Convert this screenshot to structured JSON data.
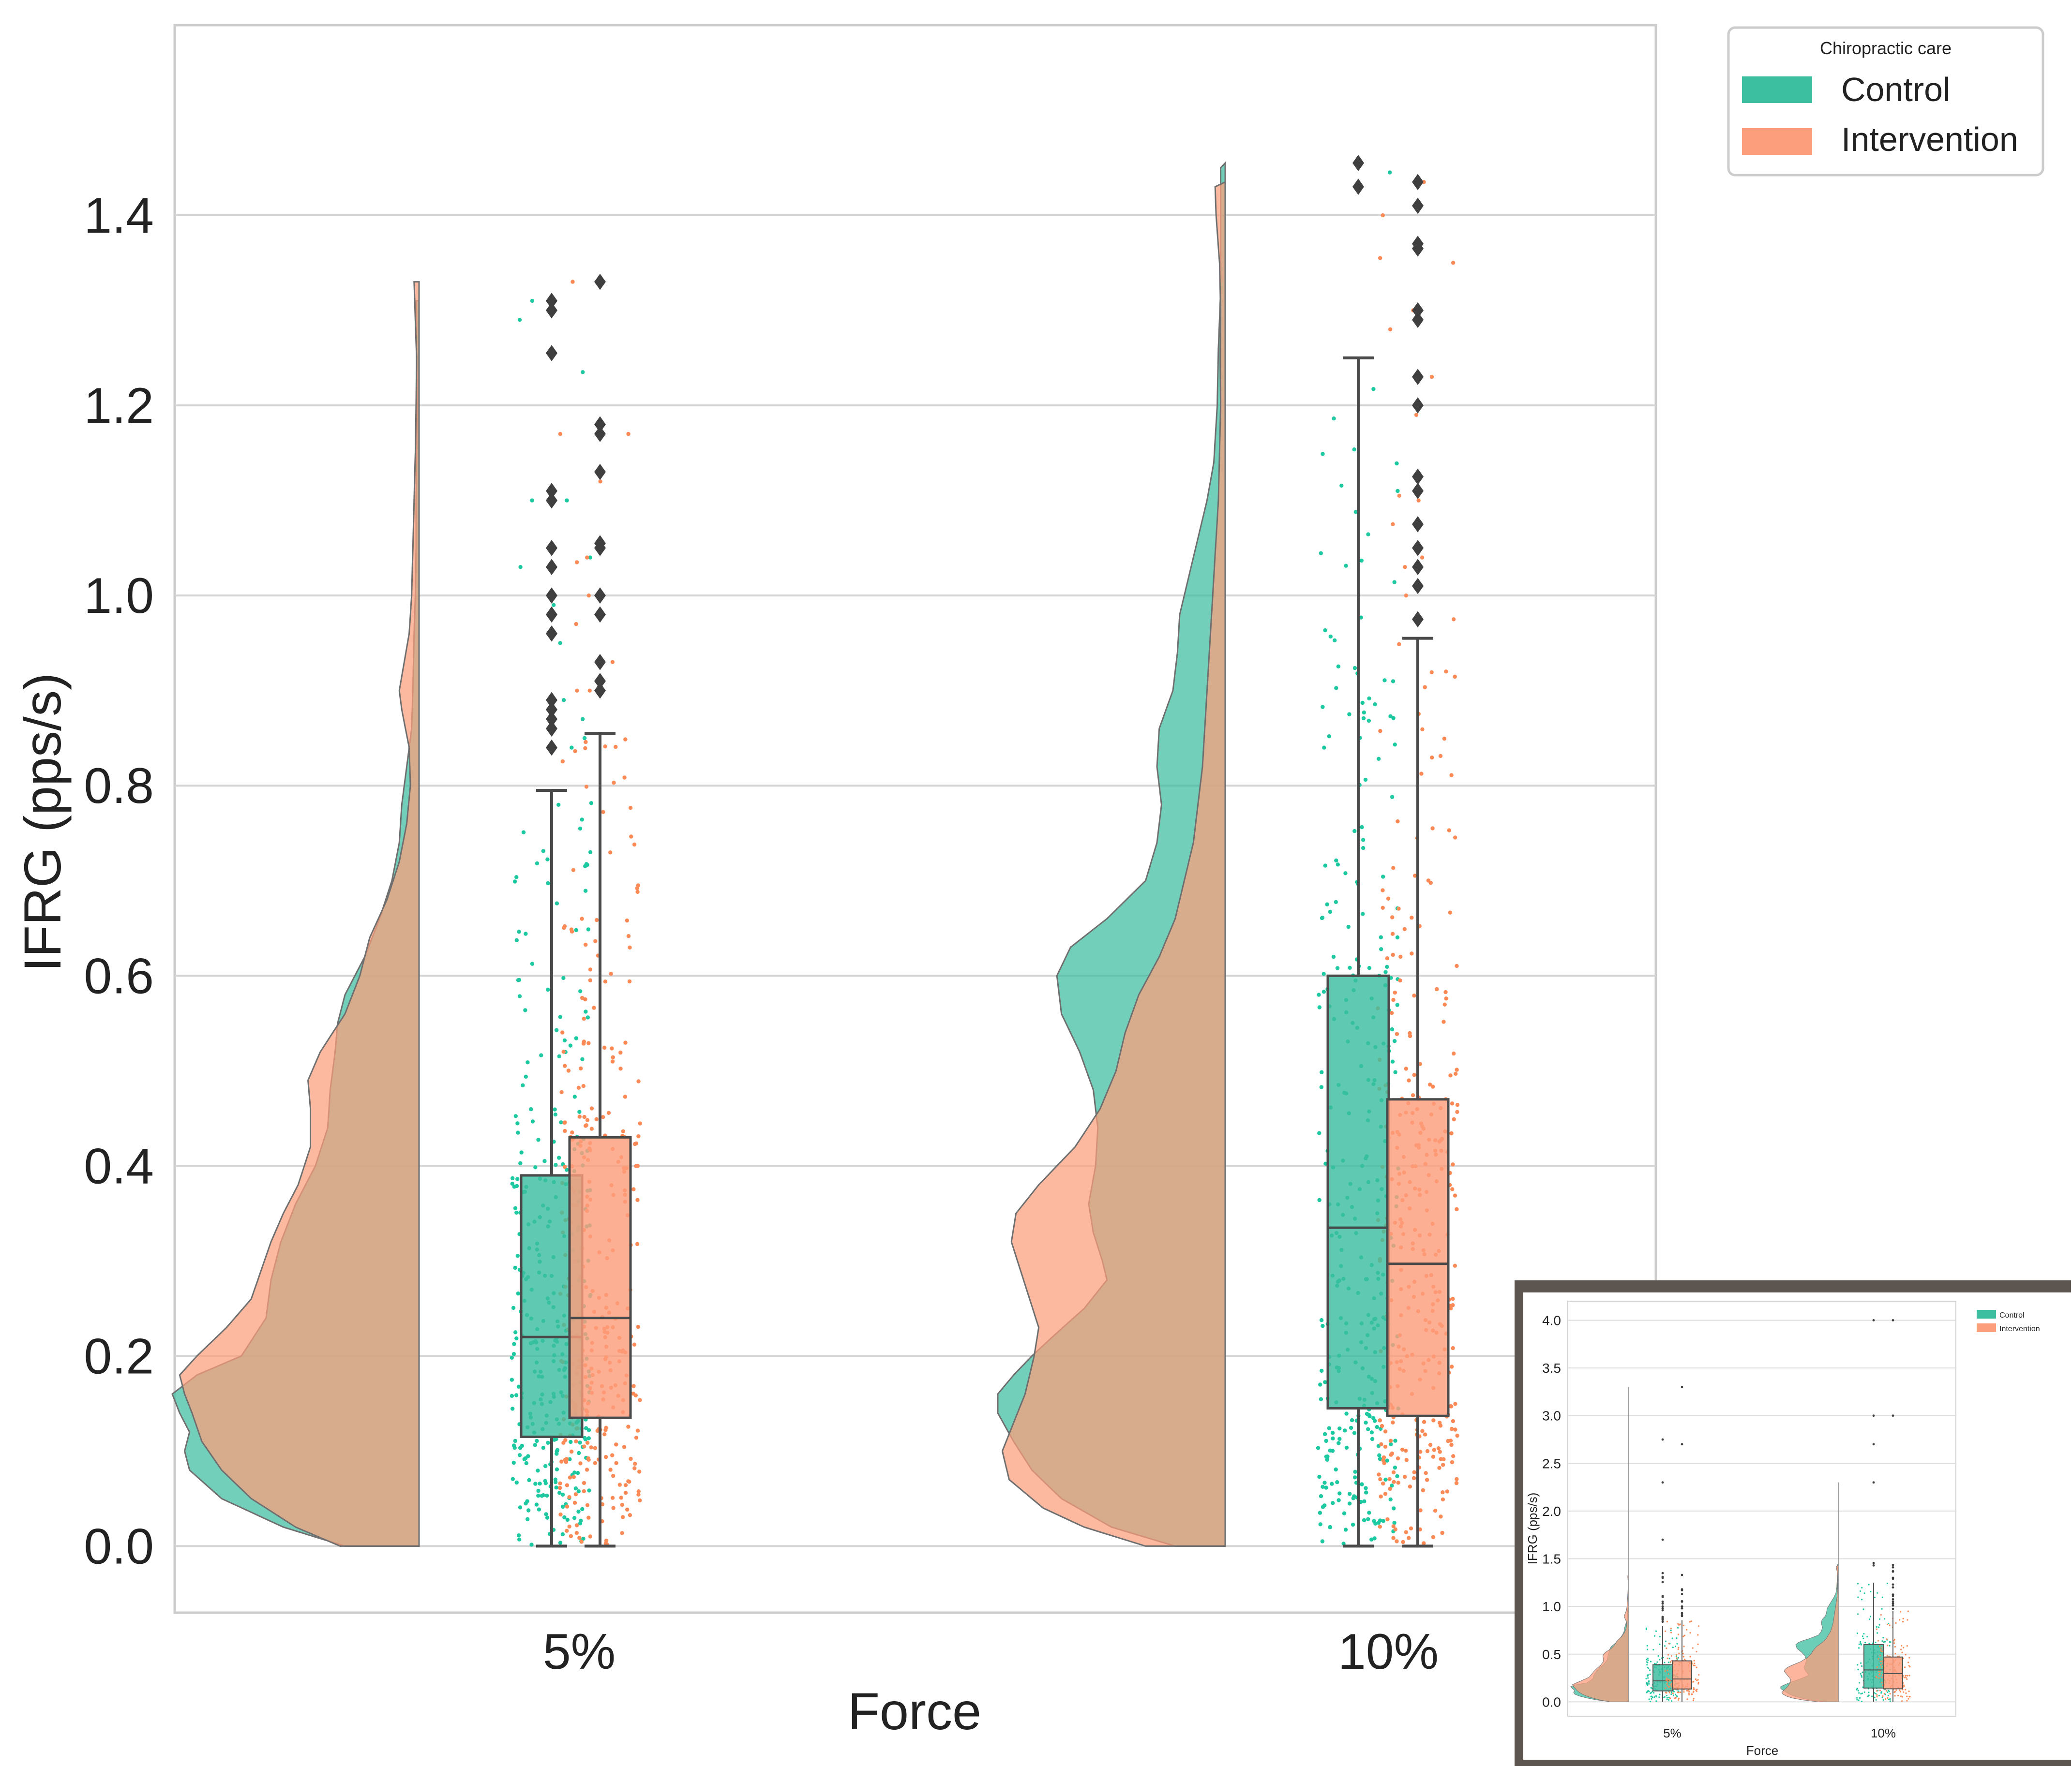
{
  "chart_data": {
    "type": "raincloud",
    "title": "",
    "xlabel": "Force",
    "ylabel": "IFRG (pps/s)",
    "categories": [
      "5%",
      "10%"
    ],
    "ylim": [
      -0.07,
      1.6
    ],
    "yticks": [
      0.0,
      0.2,
      0.4,
      0.6,
      0.8,
      1.0,
      1.2,
      1.4
    ],
    "ytick_labels": [
      "0.0",
      "0.2",
      "0.4",
      "0.6",
      "0.8",
      "1.0",
      "1.2",
      "1.4"
    ],
    "grid": true,
    "legend": {
      "title": "Chiropractic care",
      "placement": "outside-top-right",
      "entries": [
        {
          "name": "Control",
          "color": "#3cbea0"
        },
        {
          "name": "Intervention",
          "color": "#fc9e7c"
        }
      ]
    },
    "colors": {
      "control": "#3cbea0",
      "intervention": "#fc9e7c",
      "control_point": "#1dc9a0",
      "intervention_point": "#fb8a56",
      "box_line": "#4a4a4a",
      "grid": "#d4d4d4"
    },
    "series": [
      {
        "name": "Control",
        "boxes": [
          {
            "category": "5%",
            "whisker_low": 0.0,
            "q1": 0.115,
            "median": 0.22,
            "q3": 0.39,
            "whisker_high": 0.795,
            "outliers": [
              0.84,
              0.86,
              0.87,
              0.88,
              0.89,
              0.96,
              0.98,
              1.0,
              1.03,
              1.05,
              1.1,
              1.11,
              1.255,
              1.3,
              1.31
            ]
          },
          {
            "category": "10%",
            "whisker_low": 0.0,
            "q1": 0.145,
            "median": 0.335,
            "q3": 0.6,
            "whisker_high": 1.25,
            "outliers": [
              1.43,
              1.455
            ]
          }
        ],
        "density": [
          {
            "category": "5%",
            "ymax": 1.31,
            "profile": [
              [
                0.0,
                0.3
              ],
              [
                0.02,
                0.55
              ],
              [
                0.05,
                0.8
              ],
              [
                0.08,
                0.93
              ],
              [
                0.1,
                0.95
              ],
              [
                0.12,
                0.93
              ],
              [
                0.14,
                0.97
              ],
              [
                0.16,
                1.0
              ],
              [
                0.18,
                0.9
              ],
              [
                0.2,
                0.72
              ],
              [
                0.24,
                0.62
              ],
              [
                0.28,
                0.6
              ],
              [
                0.32,
                0.56
              ],
              [
                0.36,
                0.5
              ],
              [
                0.4,
                0.42
              ],
              [
                0.44,
                0.37
              ],
              [
                0.48,
                0.36
              ],
              [
                0.52,
                0.34
              ],
              [
                0.55,
                0.33
              ],
              [
                0.58,
                0.3
              ],
              [
                0.62,
                0.22
              ],
              [
                0.66,
                0.16
              ],
              [
                0.7,
                0.11
              ],
              [
                0.74,
                0.08
              ],
              [
                0.78,
                0.07
              ],
              [
                0.82,
                0.05
              ],
              [
                0.86,
                0.03
              ],
              [
                0.9,
                0.025
              ],
              [
                0.96,
                0.02
              ],
              [
                1.0,
                0.015
              ],
              [
                1.05,
                0.012
              ],
              [
                1.1,
                0.012
              ],
              [
                1.15,
                0.01
              ],
              [
                1.2,
                0.008
              ],
              [
                1.25,
                0.01
              ],
              [
                1.31,
                0.012
              ]
            ]
          },
          {
            "category": "10%",
            "ymax": 1.455,
            "profile": [
              [
                0.0,
                0.22
              ],
              [
                0.02,
                0.5
              ],
              [
                0.05,
                0.72
              ],
              [
                0.08,
                0.85
              ],
              [
                0.11,
                0.93
              ],
              [
                0.14,
                1.0
              ],
              [
                0.16,
                1.0
              ],
              [
                0.18,
                0.93
              ],
              [
                0.2,
                0.85
              ],
              [
                0.22,
                0.76
              ],
              [
                0.25,
                0.62
              ],
              [
                0.28,
                0.52
              ],
              [
                0.3,
                0.54
              ],
              [
                0.33,
                0.58
              ],
              [
                0.36,
                0.6
              ],
              [
                0.4,
                0.57
              ],
              [
                0.44,
                0.56
              ],
              [
                0.48,
                0.58
              ],
              [
                0.52,
                0.64
              ],
              [
                0.56,
                0.72
              ],
              [
                0.6,
                0.74
              ],
              [
                0.63,
                0.68
              ],
              [
                0.66,
                0.52
              ],
              [
                0.7,
                0.35
              ],
              [
                0.74,
                0.3
              ],
              [
                0.78,
                0.28
              ],
              [
                0.82,
                0.3
              ],
              [
                0.86,
                0.29
              ],
              [
                0.9,
                0.23
              ],
              [
                0.94,
                0.21
              ],
              [
                0.98,
                0.2
              ],
              [
                1.02,
                0.16
              ],
              [
                1.06,
                0.12
              ],
              [
                1.1,
                0.08
              ],
              [
                1.14,
                0.05
              ],
              [
                1.2,
                0.035
              ],
              [
                1.26,
                0.03
              ],
              [
                1.32,
                0.02
              ],
              [
                1.38,
                0.02
              ],
              [
                1.44,
                0.02
              ],
              [
                1.455,
                0.02
              ]
            ]
          }
        ]
      },
      {
        "name": "Intervention",
        "boxes": [
          {
            "category": "5%",
            "whisker_low": 0.0,
            "q1": 0.135,
            "median": 0.24,
            "q3": 0.43,
            "whisker_high": 0.855,
            "outliers": [
              0.9,
              0.91,
              0.93,
              0.98,
              1.0,
              1.05,
              1.055,
              1.13,
              1.17,
              1.18,
              1.33
            ]
          },
          {
            "category": "10%",
            "whisker_low": 0.0,
            "q1": 0.137,
            "median": 0.297,
            "q3": 0.47,
            "whisker_high": 0.955,
            "outliers": [
              0.975,
              1.01,
              1.03,
              1.05,
              1.075,
              1.11,
              1.125,
              1.2,
              1.23,
              1.29,
              1.3,
              1.365,
              1.37,
              1.41,
              1.435
            ]
          }
        ],
        "density": [
          {
            "category": "5%",
            "ymax": 1.33,
            "profile": [
              [
                0.0,
                0.32
              ],
              [
                0.02,
                0.5
              ],
              [
                0.05,
                0.68
              ],
              [
                0.08,
                0.8
              ],
              [
                0.11,
                0.88
              ],
              [
                0.14,
                0.92
              ],
              [
                0.16,
                0.95
              ],
              [
                0.18,
                0.97
              ],
              [
                0.2,
                0.9
              ],
              [
                0.23,
                0.78
              ],
              [
                0.26,
                0.68
              ],
              [
                0.29,
                0.64
              ],
              [
                0.32,
                0.6
              ],
              [
                0.35,
                0.55
              ],
              [
                0.38,
                0.49
              ],
              [
                0.42,
                0.44
              ],
              [
                0.46,
                0.44
              ],
              [
                0.49,
                0.45
              ],
              [
                0.52,
                0.4
              ],
              [
                0.56,
                0.3
              ],
              [
                0.6,
                0.24
              ],
              [
                0.64,
                0.2
              ],
              [
                0.68,
                0.13
              ],
              [
                0.72,
                0.08
              ],
              [
                0.76,
                0.05
              ],
              [
                0.8,
                0.035
              ],
              [
                0.84,
                0.04
              ],
              [
                0.88,
                0.07
              ],
              [
                0.9,
                0.08
              ],
              [
                0.93,
                0.06
              ],
              [
                0.96,
                0.04
              ],
              [
                1.0,
                0.03
              ],
              [
                1.05,
                0.025
              ],
              [
                1.1,
                0.02
              ],
              [
                1.15,
                0.015
              ],
              [
                1.2,
                0.012
              ],
              [
                1.25,
                0.01
              ],
              [
                1.33,
                0.02
              ]
            ]
          },
          {
            "category": "10%",
            "ymax": 1.435,
            "profile": [
              [
                0.0,
                0.35
              ],
              [
                0.02,
                0.62
              ],
              [
                0.04,
                0.8
              ],
              [
                0.07,
                0.95
              ],
              [
                0.1,
                0.98
              ],
              [
                0.13,
                0.93
              ],
              [
                0.16,
                0.88
              ],
              [
                0.2,
                0.84
              ],
              [
                0.23,
                0.82
              ],
              [
                0.26,
                0.86
              ],
              [
                0.29,
                0.9
              ],
              [
                0.32,
                0.94
              ],
              [
                0.35,
                0.92
              ],
              [
                0.38,
                0.82
              ],
              [
                0.42,
                0.66
              ],
              [
                0.46,
                0.55
              ],
              [
                0.5,
                0.48
              ],
              [
                0.54,
                0.44
              ],
              [
                0.58,
                0.38
              ],
              [
                0.62,
                0.29
              ],
              [
                0.66,
                0.22
              ],
              [
                0.7,
                0.18
              ],
              [
                0.74,
                0.14
              ],
              [
                0.78,
                0.12
              ],
              [
                0.82,
                0.1
              ],
              [
                0.86,
                0.09
              ],
              [
                0.9,
                0.08
              ],
              [
                0.94,
                0.07
              ],
              [
                0.98,
                0.06
              ],
              [
                1.02,
                0.05
              ],
              [
                1.06,
                0.04
              ],
              [
                1.1,
                0.03
              ],
              [
                1.15,
                0.025
              ],
              [
                1.2,
                0.02
              ],
              [
                1.25,
                0.022
              ],
              [
                1.3,
                0.02
              ],
              [
                1.35,
                0.025
              ],
              [
                1.4,
                0.04
              ],
              [
                1.435,
                0.045
              ]
            ]
          }
        ]
      }
    ],
    "inset": {
      "ylim": [
        -0.15,
        4.2
      ],
      "yticks": [
        0.0,
        0.5,
        1.0,
        1.5,
        2.0,
        2.5,
        3.0,
        3.5,
        4.0
      ],
      "ytick_labels": [
        "0.0",
        "0.5",
        "1.0",
        "1.5",
        "2.0",
        "2.5",
        "3.0",
        "3.5",
        "4.0"
      ],
      "xlabel": "Force",
      "ylabel": "IFRG (pps/s)",
      "categories": [
        "5%",
        "10%"
      ],
      "legend_entries": [
        "Control",
        "Intervention"
      ],
      "extra_outliers_control": [
        1.35,
        1.7,
        2.3,
        2.75
      ],
      "extra_outliers_intervention": [
        2.7,
        3.3
      ],
      "extra_outliers_control_10": [
        2.3,
        2.7,
        3.0,
        4.0
      ],
      "extra_outliers_intervention_10": [
        3.0,
        4.0
      ]
    }
  }
}
